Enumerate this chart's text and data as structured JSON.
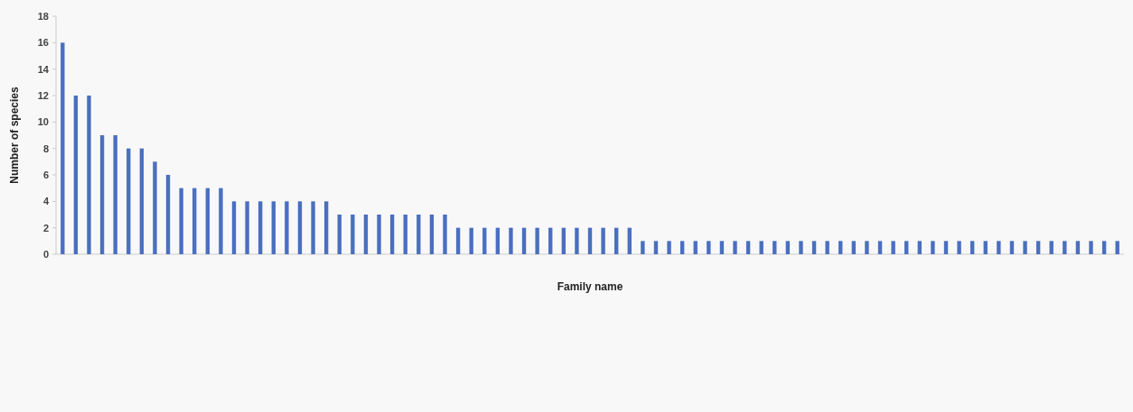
{
  "chart_data": {
    "type": "bar",
    "xlabel": "Family name",
    "ylabel": "Number of species",
    "categories": [
      null,
      null,
      null,
      null,
      null,
      null,
      null,
      null,
      null,
      null,
      null,
      null,
      null,
      null,
      null,
      null,
      null,
      null,
      null,
      null,
      null,
      null,
      null,
      null,
      null,
      null,
      null,
      null,
      null,
      null,
      null,
      null,
      null,
      null,
      null,
      null,
      null,
      null,
      null,
      null,
      null,
      null,
      null,
      null,
      null,
      null,
      null,
      null,
      null,
      null,
      null,
      null,
      null,
      null,
      null,
      null,
      null,
      null,
      null,
      null,
      null,
      null,
      null,
      null,
      null,
      null,
      null,
      null,
      null,
      null,
      null,
      null,
      null,
      null,
      null,
      null,
      null,
      null,
      null,
      null,
      null
    ],
    "values": [
      16,
      12,
      12,
      9,
      9,
      8,
      8,
      7,
      6,
      5,
      5,
      5,
      5,
      4,
      4,
      4,
      4,
      4,
      4,
      4,
      4,
      3,
      3,
      3,
      3,
      3,
      3,
      3,
      3,
      3,
      2,
      2,
      2,
      2,
      2,
      2,
      2,
      2,
      2,
      2,
      2,
      2,
      2,
      2,
      1,
      1,
      1,
      1,
      1,
      1,
      1,
      1,
      1,
      1,
      1,
      1,
      1,
      1,
      1,
      1,
      1,
      1,
      1,
      1,
      1,
      1,
      1,
      1,
      1,
      1,
      1,
      1,
      1,
      1,
      1,
      1,
      1,
      1,
      1,
      1,
      1
    ],
    "color": "#4a6fc0",
    "ylim": [
      0,
      18
    ],
    "yticks": [
      0,
      2,
      4,
      6,
      8,
      10,
      12,
      14,
      16,
      18
    ],
    "grid": false
  }
}
